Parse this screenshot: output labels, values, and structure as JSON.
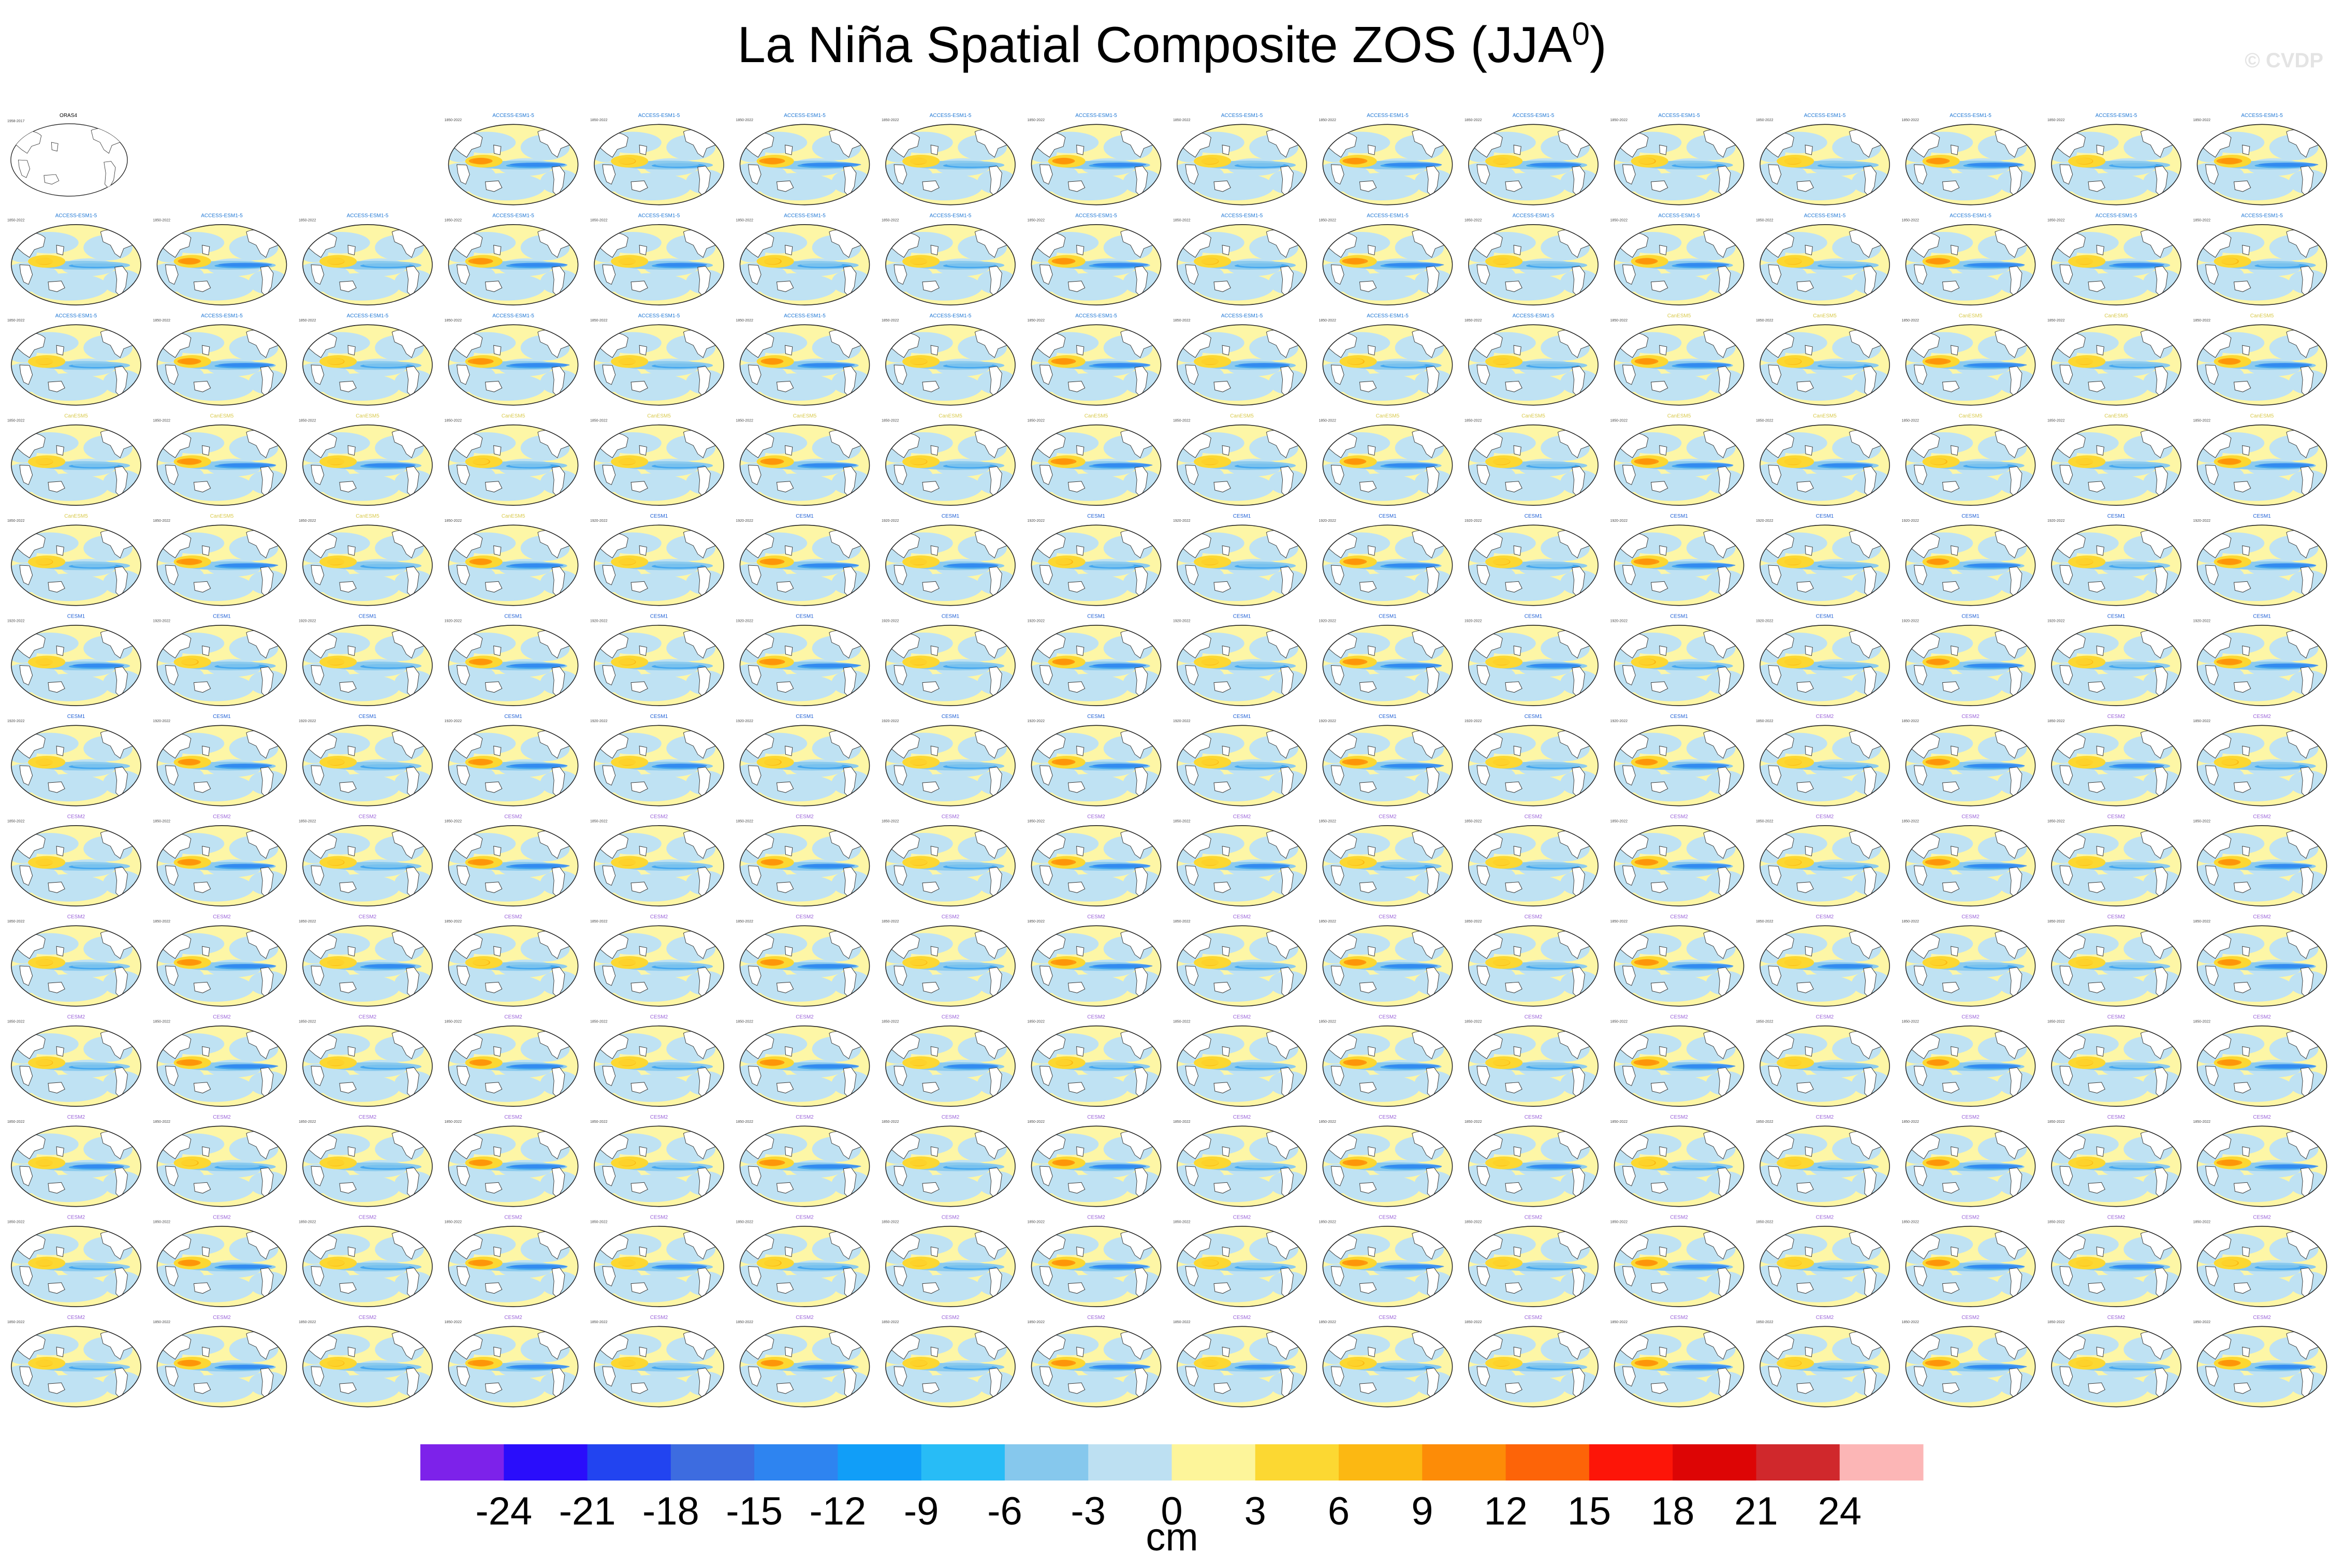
{
  "title": {
    "main": "La Niña Spatial Composite ZOS (JJA",
    "superscript": "0",
    "close": ")"
  },
  "watermark": "© CVDP",
  "colorbar": {
    "unit_label": "cm",
    "tick_labels": [
      "-24",
      "-21",
      "-18",
      "-15",
      "-12",
      "-9",
      "-6",
      "-3",
      "0",
      "3",
      "6",
      "9",
      "12",
      "15",
      "18",
      "21",
      "24"
    ],
    "colors": [
      "#7d22ea",
      "#2a0dfb",
      "#2244f0",
      "#3d6ce0",
      "#2e84f0",
      "#119ef8",
      "#28bcf6",
      "#86c8ed",
      "#bde0f2",
      "#fdf59a",
      "#fcd832",
      "#fcb812",
      "#fd8c07",
      "#fd6408",
      "#fd1508",
      "#dd0505",
      "#d0282c",
      "#fcb6b6"
    ]
  },
  "chart_data": {
    "type": "heatmap",
    "title": "La Niña Spatial Composite ZOS (JJA0)",
    "variable": "ZOS",
    "season": "JJA",
    "units": "cm",
    "color_levels": [
      -24,
      -21,
      -18,
      -15,
      -12,
      -9,
      -6,
      -3,
      0,
      3,
      6,
      9,
      12,
      15,
      18,
      21,
      24
    ],
    "layout": {
      "rows": 13,
      "columns": 16
    },
    "reference_panel": {
      "name": "ORAS4",
      "years": "1958-2017"
    },
    "ensemble_groups": [
      {
        "model": "ACCESS-ESM1-5",
        "members": 40,
        "years": "1850-2022",
        "title_color": "#1f77d4"
      },
      {
        "model": "CanESM5",
        "members": 25,
        "years": "1850-2022",
        "title_color": "#d8c94a"
      },
      {
        "model": "CESM1",
        "members": 40,
        "years": "1920-2022",
        "title_color": "#1f5fd4"
      },
      {
        "model": "CESM2",
        "members": 100,
        "years": "1850-2022",
        "title_color": "#9a62d8"
      }
    ],
    "tick_labels_source": "colorbar",
    "pattern_variant_seed": [
      3,
      7,
      1,
      9,
      4,
      6,
      2,
      8,
      5,
      0
    ]
  }
}
